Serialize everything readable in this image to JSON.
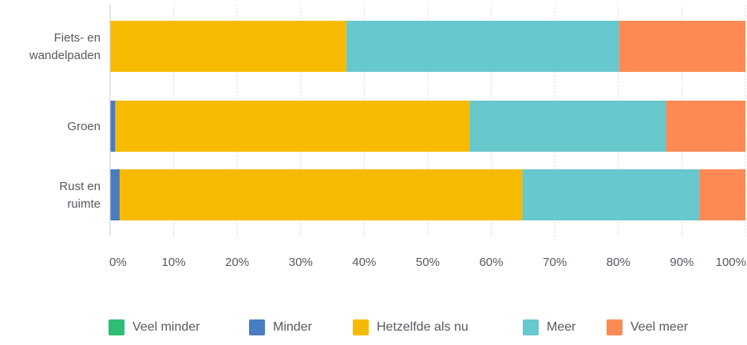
{
  "chart_data": {
    "type": "bar",
    "orientation": "horizontal",
    "stacked": true,
    "percent_stacked": true,
    "categories": [
      [
        "Fiets- en",
        "wandelpaden"
      ],
      [
        "Groen"
      ],
      [
        "Rust en",
        "ruimte"
      ]
    ],
    "series": [
      {
        "name": "Veel minder",
        "color": "#2dbd74",
        "values": [
          0,
          0,
          0
        ]
      },
      {
        "name": "Minder",
        "color": "#4a7cc0",
        "values": [
          0,
          0.8,
          1.5
        ]
      },
      {
        "name": "Hetzelfde als nu",
        "color": "#f6bb00",
        "values": [
          37.2,
          55.8,
          63.4
        ]
      },
      {
        "name": "Meer",
        "color": "#67c8cd",
        "values": [
          42.9,
          30.9,
          27.8
        ]
      },
      {
        "name": "Veel meer",
        "color": "#fd8a55",
        "values": [
          19.9,
          12.5,
          7.3
        ]
      }
    ],
    "xlim": [
      0,
      100
    ],
    "xticks": [
      "0%",
      "10%",
      "20%",
      "30%",
      "40%",
      "50%",
      "60%",
      "70%",
      "80%",
      "90%",
      "100%"
    ],
    "grid": true,
    "legend_position": "bottom"
  }
}
